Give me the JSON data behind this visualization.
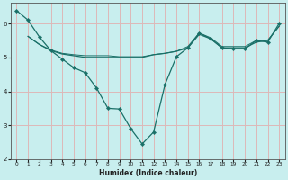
{
  "xlabel": "Humidex (Indice chaleur)",
  "bg_color": "#c8eeee",
  "grid_color": "#ddb8b8",
  "line_color": "#1a7068",
  "xlim": [
    -0.5,
    23.5
  ],
  "ylim": [
    2.0,
    6.6
  ],
  "yticks": [
    2,
    3,
    4,
    5,
    6
  ],
  "xticks": [
    0,
    1,
    2,
    3,
    4,
    5,
    6,
    7,
    8,
    9,
    10,
    11,
    12,
    13,
    14,
    15,
    16,
    17,
    18,
    19,
    20,
    21,
    22,
    23
  ],
  "line1_x": [
    0,
    1,
    2,
    3,
    4,
    5,
    6,
    7,
    8,
    9,
    10,
    11,
    12,
    13,
    14,
    15,
    16,
    17,
    18,
    19,
    20,
    21,
    22,
    23
  ],
  "line1_y": [
    6.38,
    6.1,
    5.6,
    5.2,
    4.95,
    4.7,
    4.55,
    4.1,
    3.5,
    3.48,
    2.9,
    2.45,
    2.8,
    4.2,
    5.02,
    5.28,
    5.72,
    5.55,
    5.28,
    5.25,
    5.25,
    5.5,
    5.45,
    6.0
  ],
  "line2_x": [
    1,
    2,
    3,
    4,
    5,
    6,
    7,
    8,
    9,
    10,
    11,
    12,
    13,
    14,
    15,
    16,
    17,
    18,
    19,
    20,
    21,
    22,
    23
  ],
  "line2_y": [
    5.62,
    5.38,
    5.2,
    5.1,
    5.05,
    5.0,
    5.0,
    5.0,
    5.0,
    5.0,
    5.0,
    5.08,
    5.12,
    5.18,
    5.28,
    5.68,
    5.55,
    5.28,
    5.28,
    5.28,
    5.45,
    5.5,
    5.92
  ],
  "line3_x": [
    1,
    2,
    3,
    4,
    5,
    6,
    7,
    8,
    9,
    10,
    11,
    12,
    13,
    14,
    15,
    16,
    17,
    18,
    19,
    20,
    21,
    22,
    23
  ],
  "line3_y": [
    5.62,
    5.38,
    5.22,
    5.12,
    5.08,
    5.05,
    5.05,
    5.05,
    5.02,
    5.02,
    5.02,
    5.08,
    5.12,
    5.18,
    5.32,
    5.72,
    5.58,
    5.32,
    5.32,
    5.32,
    5.5,
    5.5,
    5.92
  ]
}
